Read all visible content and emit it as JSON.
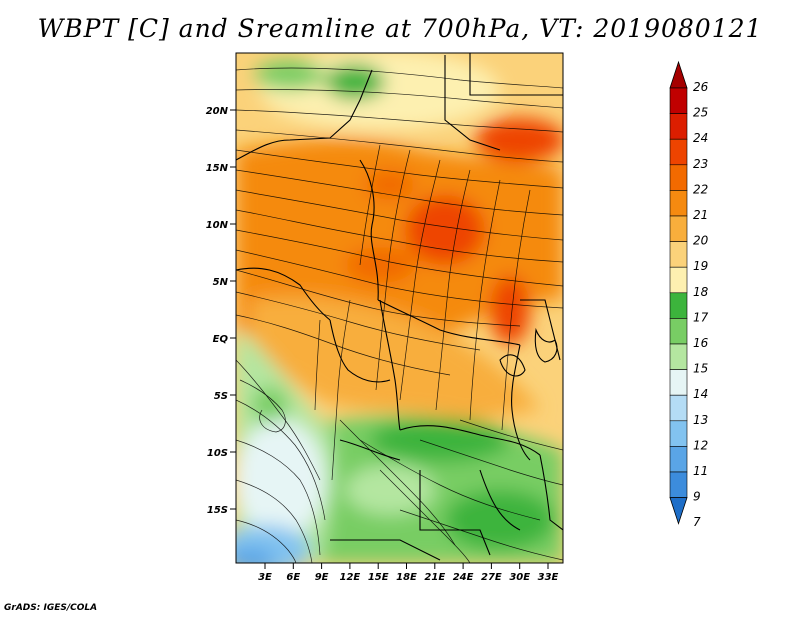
{
  "title": "WBPT [C] and Sreamline at 700hPa, VT: 2019080121",
  "credit": "GrADS: IGES/COLA",
  "lat_labels": [
    "20N",
    "15N",
    "10N",
    "5N",
    "EQ",
    "5S",
    "10S",
    "15S"
  ],
  "lon_labels": [
    "3E",
    "6E",
    "9E",
    "12E",
    "15E",
    "18E",
    "21E",
    "24E",
    "27E",
    "30E",
    "33E"
  ],
  "colorbar": {
    "labels": [
      "26",
      "25",
      "24",
      "23",
      "22",
      "21",
      "20",
      "19",
      "18",
      "17",
      "16",
      "15",
      "14",
      "13",
      "12",
      "11",
      "9",
      "7"
    ],
    "colors": [
      "#a50000",
      "#c00000",
      "#dc1e00",
      "#ee4400",
      "#f26a00",
      "#f58a10",
      "#f8ae3c",
      "#fbd27a",
      "#fdf0b0",
      "#3cb43c",
      "#78cd64",
      "#b4e6a0",
      "#e6f5f5",
      "#b4dcf5",
      "#82c3f0",
      "#5aa5e6",
      "#3c8cdc",
      "#1e6ec8"
    ]
  }
}
